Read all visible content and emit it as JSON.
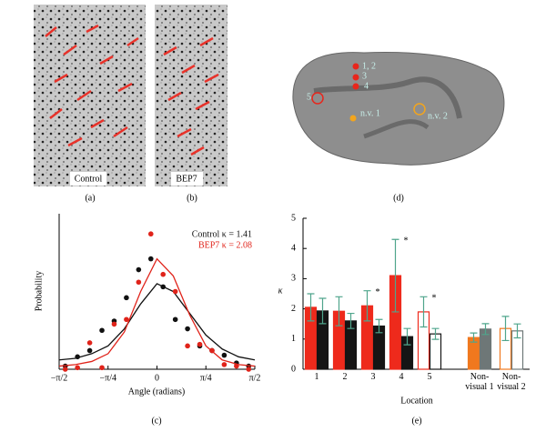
{
  "figure": {
    "panels": {
      "a": "(a)",
      "b": "(b)",
      "c": "(c)",
      "d": "(d)",
      "e": "(e)"
    },
    "image_a_label": "Control",
    "image_b_label": "BEP7",
    "brain_labels": [
      "1, 2",
      "3",
      "4",
      "5",
      "n.v. 1",
      "n.v. 2"
    ]
  },
  "chart_data": [
    {
      "type": "scatter-fit",
      "x_label": "Angle (radians)",
      "y_label": "Probability",
      "xlim": [
        -1.5708,
        1.5708
      ],
      "ylim": [
        0,
        1
      ],
      "xticks": [
        {
          "value": -1.5708,
          "label": "−π/2"
        },
        {
          "value": -0.7854,
          "label": "−π/4"
        },
        0,
        {
          "value": 0.7854,
          "label": "π/4"
        },
        {
          "value": 1.5708,
          "label": "π/2"
        }
      ],
      "x": [
        -1.4726,
        -1.2763,
        -1.0799,
        -0.8836,
        -0.6872,
        -0.4909,
        -0.2945,
        -0.0982,
        0.0982,
        0.2945,
        0.4909,
        0.6872,
        0.8836,
        1.0799,
        1.2763,
        1.4726
      ],
      "fit_x": [
        -1.5708,
        -1.309,
        -1.0472,
        -0.7854,
        -0.5236,
        -0.2618,
        0,
        0.2618,
        0.5236,
        0.7854,
        1.0472,
        1.309,
        1.5708
      ],
      "series": [
        {
          "name": "Control κ = 1.41",
          "color": "#111111",
          "values": [
            0.02,
            0.08,
            0.12,
            0.25,
            0.31,
            0.46,
            0.64,
            0.71,
            0.53,
            0.32,
            0.26,
            0.15,
            0.12,
            0.09,
            0.04,
            0.02
          ],
          "fit": [
            0.06,
            0.07,
            0.1,
            0.15,
            0.26,
            0.42,
            0.55,
            0.5,
            0.36,
            0.22,
            0.13,
            0.08,
            0.06
          ]
        },
        {
          "name": "BEP7 κ = 2.08",
          "color": "#e0231a",
          "values": [
            0.0,
            0.01,
            0.17,
            0.01,
            0.29,
            0.32,
            0.56,
            0.87,
            0.61,
            0.5,
            0.15,
            0.16,
            0.12,
            0.03,
            0.02,
            0.0
          ],
          "fit": [
            0.02,
            0.03,
            0.05,
            0.1,
            0.24,
            0.5,
            0.71,
            0.6,
            0.35,
            0.15,
            0.06,
            0.03,
            0.02
          ]
        }
      ]
    },
    {
      "type": "bar",
      "x_label": "Location",
      "y_label": "κ",
      "categories": [
        "1",
        "2",
        "3",
        "4",
        "5",
        "Non-visual 1",
        "Non-visual 2"
      ],
      "ylim": [
        0,
        5
      ],
      "yticks": [
        0,
        1,
        2,
        3,
        4,
        5
      ],
      "error_color": "#4fa58c",
      "series": [
        {
          "values": [
            2.05,
            1.92,
            2.1,
            3.1,
            1.9,
            1.05,
            1.35
          ],
          "errors": [
            0.45,
            0.48,
            0.5,
            1.2,
            0.5,
            0.15,
            0.4
          ],
          "colors": [
            "#ee2a1c",
            "#ee2a1c",
            "#ee2a1c",
            "#ee2a1c",
            "#ee2a1c",
            "#f0781e",
            "#f0781e"
          ],
          "filled": [
            true,
            true,
            true,
            true,
            false,
            true,
            false
          ],
          "annotations": [
            null,
            null,
            "*",
            "*",
            "*",
            null,
            null
          ]
        },
        {
          "values": [
            1.93,
            1.6,
            1.43,
            1.08,
            1.17,
            1.33,
            1.27
          ],
          "errors": [
            0.42,
            0.25,
            0.22,
            0.27,
            0.18,
            0.18,
            0.23
          ],
          "colors": [
            "#151515",
            "#151515",
            "#151515",
            "#151515",
            "#151515",
            "#6e7777",
            "#6e7777"
          ],
          "filled": [
            true,
            true,
            true,
            true,
            false,
            true,
            false
          ],
          "annotations": [
            null,
            null,
            null,
            null,
            null,
            null,
            null
          ]
        }
      ]
    }
  ]
}
